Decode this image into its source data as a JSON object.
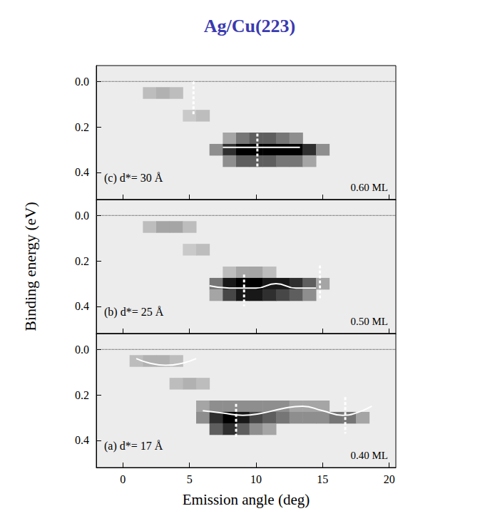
{
  "chart_data": [
    {
      "type": "heatmap",
      "title": "Ag/Cu(223)",
      "label": "(c) d*= 30 Å",
      "coverage": "0.60 ML",
      "xlim": [
        -2,
        20.5
      ],
      "xticks": [
        0,
        5,
        10,
        15,
        20
      ],
      "ylim": [
        -0.07,
        0.52
      ],
      "yticks": [
        {
          "value": 0,
          "label": "0.0"
        },
        {
          "value": 0.2,
          "label": "0.2"
        },
        {
          "value": 0.4,
          "label": "0.4"
        }
      ],
      "tick_labels": "y",
      "grid": false,
      "fermi_level": 0,
      "cell": [
        1,
        0.05
      ],
      "intensity_range": [
        0,
        1
      ],
      "intensity": [
        [
          2,
          0.05,
          0.2
        ],
        [
          3,
          0.05,
          0.25
        ],
        [
          4,
          0.05,
          0.2
        ],
        [
          5,
          0.15,
          0.15
        ],
        [
          6,
          0.15,
          0.2
        ],
        [
          8,
          0.25,
          0.3
        ],
        [
          9,
          0.25,
          0.5
        ],
        [
          10,
          0.25,
          0.6
        ],
        [
          11,
          0.25,
          0.6
        ],
        [
          12,
          0.25,
          0.5
        ],
        [
          13,
          0.25,
          0.4
        ],
        [
          7,
          0.3,
          0.4
        ],
        [
          8,
          0.3,
          0.8
        ],
        [
          9,
          0.3,
          1
        ],
        [
          10,
          0.3,
          1
        ],
        [
          11,
          0.3,
          1
        ],
        [
          12,
          0.3,
          1
        ],
        [
          13,
          0.3,
          1
        ],
        [
          14,
          0.3,
          0.8
        ],
        [
          15,
          0.3,
          0.4
        ],
        [
          8,
          0.35,
          0.4
        ],
        [
          9,
          0.35,
          0.6
        ],
        [
          10,
          0.35,
          0.6
        ],
        [
          11,
          0.35,
          0.6
        ],
        [
          12,
          0.35,
          0.5
        ],
        [
          13,
          0.35,
          0.5
        ],
        [
          14,
          0.35,
          0.3
        ]
      ],
      "curves": [
        {
          "x": [
            7.5,
            13.3
          ],
          "y": [
            0.29,
            0.29
          ]
        }
      ],
      "markers": [
        {
          "x": 5.3,
          "y": [
            0.0,
            0.15
          ]
        },
        {
          "x": 10.1,
          "y": [
            0.23,
            0.38
          ]
        }
      ]
    },
    {
      "type": "heatmap",
      "ylabel": "Binding energy (eV)",
      "label": "(b) d*= 25 Å",
      "coverage": "0.50 ML",
      "xlim": [
        -2,
        20.5
      ],
      "xticks": [
        0,
        5,
        10,
        15,
        20
      ],
      "ylim": [
        -0.07,
        0.52
      ],
      "yticks": [
        {
          "value": 0,
          "label": "0.0"
        },
        {
          "value": 0.2,
          "label": "0.2"
        },
        {
          "value": 0.4,
          "label": "0.4"
        }
      ],
      "tick_labels": "y",
      "grid": false,
      "fermi_level": 0,
      "cell": [
        1,
        0.05
      ],
      "intensity_range": [
        0,
        1
      ],
      "intensity": [
        [
          2,
          0.05,
          0.2
        ],
        [
          3,
          0.05,
          0.3
        ],
        [
          4,
          0.05,
          0.3
        ],
        [
          5,
          0.05,
          0.2
        ],
        [
          5,
          0.15,
          0.15
        ],
        [
          6,
          0.15,
          0.2
        ],
        [
          8,
          0.25,
          0.2
        ],
        [
          9,
          0.25,
          0.3
        ],
        [
          10,
          0.25,
          0.3
        ],
        [
          11,
          0.25,
          0.2
        ],
        [
          7,
          0.3,
          0.5
        ],
        [
          8,
          0.3,
          0.9
        ],
        [
          9,
          0.3,
          1
        ],
        [
          10,
          0.3,
          1
        ],
        [
          11,
          0.3,
          0.9
        ],
        [
          12,
          0.3,
          0.9
        ],
        [
          13,
          0.3,
          0.8
        ],
        [
          14,
          0.3,
          0.6
        ],
        [
          15,
          0.3,
          0.3
        ],
        [
          7,
          0.35,
          0.3
        ],
        [
          8,
          0.35,
          0.7
        ],
        [
          9,
          0.35,
          0.9
        ],
        [
          10,
          0.35,
          0.9
        ],
        [
          11,
          0.35,
          0.8
        ],
        [
          12,
          0.35,
          0.7
        ],
        [
          13,
          0.35,
          0.6
        ],
        [
          14,
          0.35,
          0.4
        ]
      ],
      "curves": [
        {
          "x": [
            6.5,
            8,
            10,
            11.5,
            13,
            14.5
          ],
          "y": [
            0.31,
            0.32,
            0.32,
            0.3,
            0.32,
            0.32
          ]
        }
      ],
      "markers": [
        {
          "x": 9.1,
          "y": [
            0.26,
            0.4
          ]
        },
        {
          "x": 14.8,
          "y": [
            0.22,
            0.37
          ]
        }
      ]
    },
    {
      "type": "heatmap",
      "xlabel": "Emission angle (deg)",
      "label": "(a) d*= 17 Å",
      "coverage": "0.40 ML",
      "xlim": [
        -2,
        20.5
      ],
      "xticks": [
        0,
        5,
        10,
        15,
        20
      ],
      "ylim": [
        -0.07,
        0.52
      ],
      "yticks": [
        {
          "value": 0,
          "label": "0.0"
        },
        {
          "value": 0.2,
          "label": "0.2"
        },
        {
          "value": 0.4,
          "label": "0.4"
        }
      ],
      "tick_labels": true,
      "grid": false,
      "fermi_level": 0,
      "cell": [
        1,
        0.05
      ],
      "intensity_range": [
        0,
        1
      ],
      "intensity": [
        [
          1,
          0.05,
          0.2
        ],
        [
          2,
          0.05,
          0.25
        ],
        [
          3,
          0.05,
          0.25
        ],
        [
          4,
          0.05,
          0.2
        ],
        [
          4,
          0.15,
          0.2
        ],
        [
          5,
          0.15,
          0.25
        ],
        [
          6,
          0.15,
          0.2
        ],
        [
          6,
          0.25,
          0.3
        ],
        [
          7,
          0.25,
          0.4
        ],
        [
          8,
          0.25,
          0.4
        ],
        [
          9,
          0.25,
          0.4
        ],
        [
          10,
          0.25,
          0.4
        ],
        [
          11,
          0.25,
          0.4
        ],
        [
          12,
          0.25,
          0.4
        ],
        [
          13,
          0.25,
          0.3
        ],
        [
          14,
          0.25,
          0.3
        ],
        [
          15,
          0.25,
          0.3
        ],
        [
          6,
          0.3,
          0.4
        ],
        [
          7,
          0.3,
          0.8
        ],
        [
          8,
          0.3,
          1
        ],
        [
          9,
          0.3,
          0.9
        ],
        [
          10,
          0.3,
          0.7
        ],
        [
          11,
          0.3,
          0.6
        ],
        [
          12,
          0.3,
          0.5
        ],
        [
          13,
          0.3,
          0.4
        ],
        [
          14,
          0.3,
          0.4
        ],
        [
          15,
          0.3,
          0.4
        ],
        [
          16,
          0.3,
          0.5
        ],
        [
          17,
          0.3,
          0.5
        ],
        [
          18,
          0.3,
          0.3
        ],
        [
          7,
          0.35,
          0.6
        ],
        [
          8,
          0.35,
          0.8
        ],
        [
          9,
          0.35,
          0.6
        ],
        [
          10,
          0.35,
          0.4
        ],
        [
          11,
          0.35,
          0.3
        ]
      ],
      "curves": [
        {
          "x": [
            1,
            2,
            3.2,
            4.5,
            5.5
          ],
          "y": [
            0.04,
            0.06,
            0.07,
            0.06,
            0.04
          ]
        },
        {
          "x": [
            6,
            7.5,
            9,
            10.5,
            12,
            13.5,
            15,
            16.5,
            17.5,
            18.7
          ],
          "y": [
            0.27,
            0.28,
            0.29,
            0.28,
            0.26,
            0.25,
            0.27,
            0.29,
            0.28,
            0.25
          ]
        }
      ],
      "markers": [
        {
          "x": 8.5,
          "y": [
            0.24,
            0.39
          ]
        },
        {
          "x": 16.7,
          "y": [
            0.21,
            0.37
          ]
        }
      ]
    }
  ]
}
